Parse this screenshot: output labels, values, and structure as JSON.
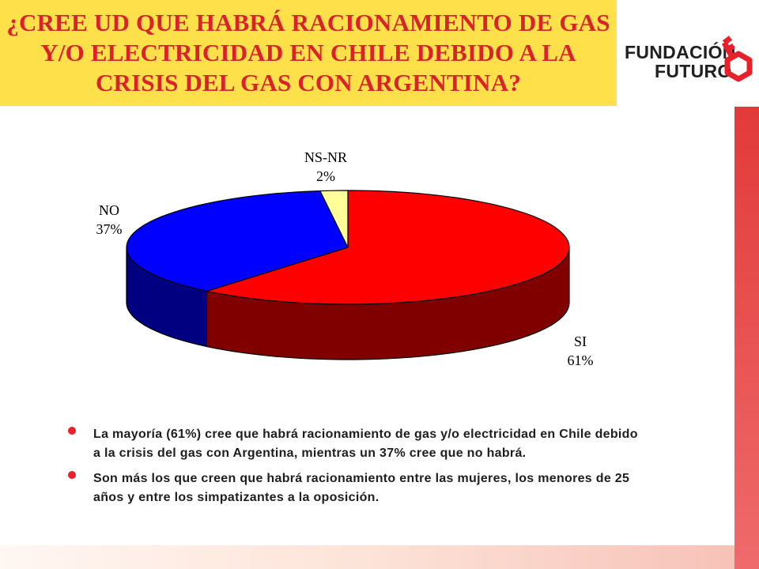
{
  "title": "¿CREE UD QUE HABRÁ RACIONAMIENTO DE GAS Y/O ELECTRICIDAD EN CHILE DEBIDO A LA CRISIS DEL GAS CON ARGENTINA?",
  "logo": {
    "line1": "FUNDACIÓN",
    "line2": "FUTURO",
    "icon": "key-icon"
  },
  "chart_data": {
    "type": "pie",
    "title": "",
    "slices": [
      {
        "label": "SI",
        "value": 61,
        "value_label": "61%",
        "color": "#ff0000"
      },
      {
        "label": "NO",
        "value": 37,
        "value_label": "37%",
        "color": "#0000ff"
      },
      {
        "label": "NS-NR",
        "value": 2,
        "value_label": "2%",
        "color": "#ffff99"
      }
    ]
  },
  "bullets": [
    "La mayoría (61%) cree que habrá racionamiento de gas y/o electricidad en Chile debido a la crisis del gas con Argentina, mientras un 37% cree que no habrá.",
    "Son más los que creen que habrá racionamiento entre las mujeres, los menores de 25 años y entre los simpatizantes a la oposición."
  ],
  "colors": {
    "title_bg": "#fde04a",
    "title_text": "#d8232a",
    "accent": "#e23a3a"
  }
}
